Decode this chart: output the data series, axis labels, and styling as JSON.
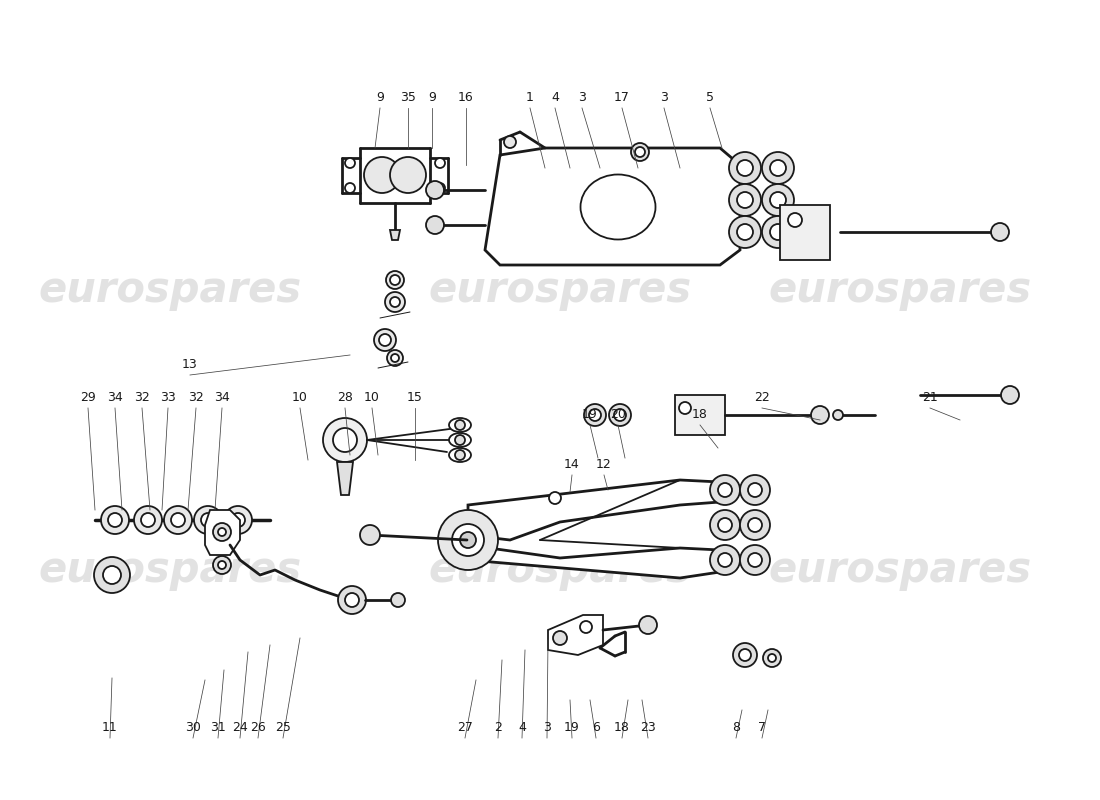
{
  "bg_color": "#ffffff",
  "line_color": "#1a1a1a",
  "label_color": "#1a1a1a",
  "watermark_color": "#cccccc",
  "top_labels": [
    [
      "9",
      380,
      108,
      375,
      148
    ],
    [
      "35",
      408,
      108,
      408,
      148
    ],
    [
      "9",
      432,
      108,
      432,
      148
    ],
    [
      "16",
      466,
      108,
      466,
      165
    ],
    [
      "1",
      530,
      108,
      545,
      168
    ],
    [
      "4",
      555,
      108,
      570,
      168
    ],
    [
      "3",
      582,
      108,
      600,
      168
    ],
    [
      "17",
      622,
      108,
      638,
      168
    ],
    [
      "3",
      664,
      108,
      680,
      168
    ],
    [
      "5",
      710,
      108,
      722,
      148
    ]
  ],
  "mid_left_labels": [
    [
      "29",
      88,
      408,
      95,
      510
    ],
    [
      "34",
      115,
      408,
      122,
      510
    ],
    [
      "32",
      142,
      408,
      150,
      510
    ],
    [
      "33",
      168,
      408,
      162,
      510
    ],
    [
      "32",
      196,
      408,
      188,
      510
    ],
    [
      "34",
      222,
      408,
      215,
      510
    ],
    [
      "10",
      300,
      408,
      308,
      460
    ],
    [
      "28",
      345,
      408,
      350,
      455
    ],
    [
      "10",
      372,
      408,
      378,
      455
    ],
    [
      "15",
      415,
      408,
      415,
      460
    ]
  ],
  "mid_right_labels": [
    [
      "19",
      590,
      425,
      598,
      458
    ],
    [
      "20",
      618,
      425,
      625,
      458
    ],
    [
      "14",
      572,
      475,
      570,
      492
    ],
    [
      "12",
      604,
      475,
      608,
      490
    ],
    [
      "18",
      700,
      425,
      718,
      448
    ],
    [
      "22",
      762,
      408,
      820,
      420
    ],
    [
      "21",
      930,
      408,
      960,
      420
    ]
  ],
  "label13": [
    "13",
    190,
    375,
    350,
    355
  ],
  "bot_labels": [
    [
      "11",
      110,
      738,
      112,
      678
    ],
    [
      "30",
      193,
      738,
      205,
      680
    ],
    [
      "31",
      218,
      738,
      224,
      670
    ],
    [
      "24",
      240,
      738,
      248,
      652
    ],
    [
      "26",
      258,
      738,
      270,
      645
    ],
    [
      "25",
      283,
      738,
      300,
      638
    ],
    [
      "27",
      465,
      738,
      476,
      680
    ],
    [
      "2",
      498,
      738,
      502,
      660
    ],
    [
      "4",
      522,
      738,
      525,
      650
    ],
    [
      "3",
      547,
      738,
      548,
      640
    ],
    [
      "19",
      572,
      738,
      570,
      700
    ],
    [
      "6",
      596,
      738,
      590,
      700
    ],
    [
      "18",
      622,
      738,
      628,
      700
    ],
    [
      "23",
      648,
      738,
      642,
      700
    ],
    [
      "8",
      736,
      738,
      742,
      710
    ],
    [
      "7",
      762,
      738,
      768,
      710
    ]
  ]
}
